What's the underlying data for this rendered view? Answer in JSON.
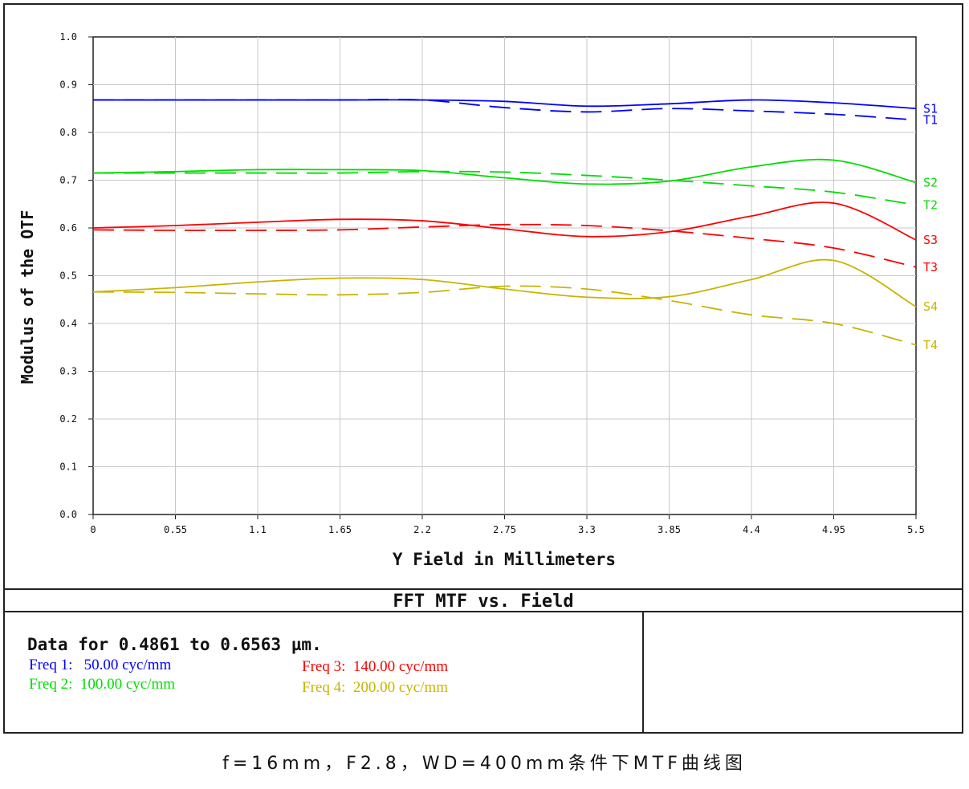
{
  "chart_data": {
    "type": "line",
    "title": "FFT MTF vs. Field",
    "xlabel": "Y Field in Millimeters",
    "ylabel": "Modulus of the OTF",
    "xlim": [
      0,
      5.5
    ],
    "ylim": [
      0,
      1.0
    ],
    "x_ticks": [
      "0",
      "0.55",
      "1.1",
      "1.65",
      "2.2",
      "2.75",
      "3.3",
      "3.85",
      "4.4",
      "4.95",
      "5.5"
    ],
    "y_ticks": [
      "0.0",
      "0.1",
      "0.2",
      "0.3",
      "0.4",
      "0.5",
      "0.6",
      "0.7",
      "0.8",
      "0.9",
      "1.0"
    ],
    "grid": true,
    "legend": "right-end labels",
    "x": [
      0,
      0.55,
      1.1,
      1.65,
      2.2,
      2.75,
      3.3,
      3.85,
      4.4,
      4.95,
      5.5
    ],
    "series": [
      {
        "name": "S1",
        "color": "#0000ff",
        "style": "solid",
        "values": [
          0.868,
          0.868,
          0.868,
          0.868,
          0.868,
          0.865,
          0.855,
          0.86,
          0.868,
          0.862,
          0.85
        ]
      },
      {
        "name": "T1",
        "color": "#0000ff",
        "style": "dashed",
        "values": [
          0.868,
          0.868,
          0.868,
          0.868,
          0.868,
          0.852,
          0.843,
          0.85,
          0.845,
          0.838,
          0.826
        ]
      },
      {
        "name": "S2",
        "color": "#00dd00",
        "style": "solid",
        "values": [
          0.715,
          0.718,
          0.722,
          0.722,
          0.72,
          0.705,
          0.692,
          0.698,
          0.728,
          0.742,
          0.695
        ]
      },
      {
        "name": "T2",
        "color": "#00dd00",
        "style": "dashed",
        "values": [
          0.715,
          0.715,
          0.715,
          0.715,
          0.718,
          0.717,
          0.71,
          0.7,
          0.688,
          0.675,
          0.648
        ]
      },
      {
        "name": "S3",
        "color": "#ff0000",
        "style": "solid",
        "values": [
          0.6,
          0.605,
          0.612,
          0.618,
          0.615,
          0.598,
          0.582,
          0.592,
          0.625,
          0.652,
          0.575
        ]
      },
      {
        "name": "T3",
        "color": "#ff0000",
        "style": "dashed",
        "values": [
          0.596,
          0.595,
          0.595,
          0.596,
          0.602,
          0.607,
          0.605,
          0.594,
          0.578,
          0.558,
          0.518
        ]
      },
      {
        "name": "S4",
        "color": "#c8b400",
        "style": "solid",
        "values": [
          0.466,
          0.475,
          0.487,
          0.495,
          0.492,
          0.472,
          0.455,
          0.456,
          0.492,
          0.532,
          0.435
        ]
      },
      {
        "name": "T4",
        "color": "#c8b400",
        "style": "dashed",
        "values": [
          0.466,
          0.465,
          0.462,
          0.46,
          0.465,
          0.478,
          0.472,
          0.448,
          0.418,
          0.4,
          0.355
        ]
      }
    ]
  },
  "info": {
    "data_range": "Data for 0.4861 to 0.6563 µm.",
    "freqs": [
      {
        "label": "Freq 1:   50.00 cyc/mm",
        "color": "#0000ff"
      },
      {
        "label": "Freq 2:  100.00 cyc/mm",
        "color": "#00dd00"
      },
      {
        "label": "Freq 3:  140.00 cyc/mm",
        "color": "#ff0000"
      },
      {
        "label": "Freq 4:  200.00 cyc/mm",
        "color": "#c8b400"
      }
    ]
  },
  "caption": "f=16mm，F2.8，WD=400mm条件下MTF曲线图"
}
